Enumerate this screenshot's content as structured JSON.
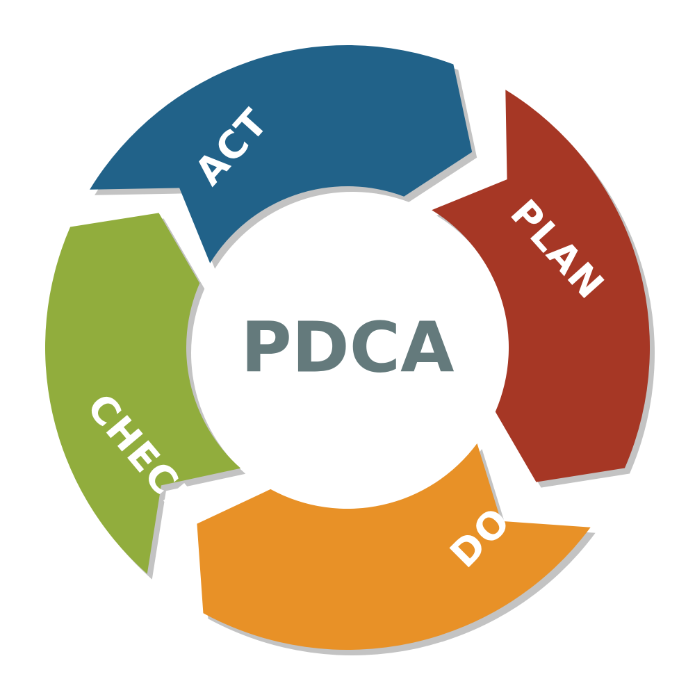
{
  "center": {
    "label": "PDCA",
    "color": "#647a7c"
  },
  "segments": [
    {
      "key": "plan",
      "label": "PLAN",
      "color": "#a63725"
    },
    {
      "key": "do",
      "label": "DO",
      "color": "#e89127"
    },
    {
      "key": "check",
      "label": "CHECK",
      "color": "#91ad3d"
    },
    {
      "key": "act",
      "label": "ACT",
      "color": "#216289"
    }
  ],
  "colors": {
    "shadow": "#c3c3c3",
    "background": "#ffffff"
  }
}
